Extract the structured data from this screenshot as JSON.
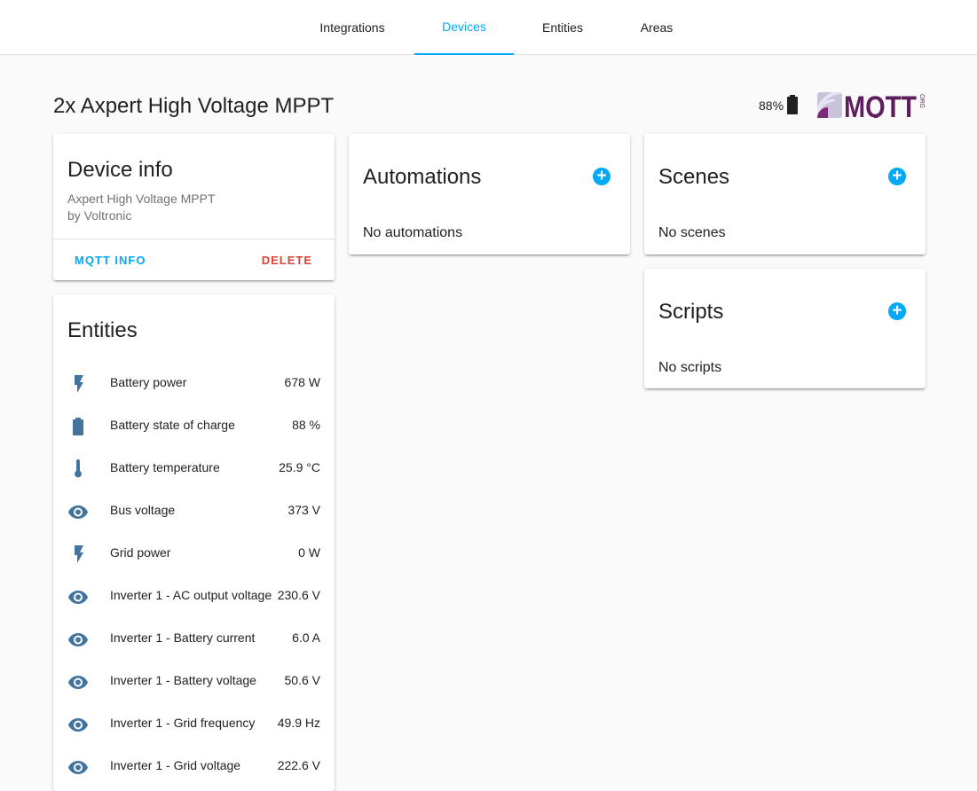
{
  "tabs": [
    {
      "label": "Integrations"
    },
    {
      "label": "Devices"
    },
    {
      "label": "Entities"
    },
    {
      "label": "Areas"
    }
  ],
  "active_tab": "Devices",
  "device_title": "2x Axpert High Voltage MPPT",
  "battery_level": "88%",
  "logo_text": "MQTT",
  "logo_sub": "ORG",
  "device_info": {
    "heading": "Device info",
    "model": "Axpert High Voltage MPPT",
    "manufacturer": "by Voltronic",
    "mqtt_info": "MQTT INFO",
    "delete": "DELETE"
  },
  "entities": {
    "heading": "Entities",
    "items": [
      {
        "icon": "flash-icon",
        "name": "Battery power",
        "value": "678 W"
      },
      {
        "icon": "battery-icon",
        "name": "Battery state of charge",
        "value": "88 %"
      },
      {
        "icon": "thermometer-icon",
        "name": "Battery temperature",
        "value": "25.9 °C"
      },
      {
        "icon": "eye-icon",
        "name": "Bus voltage",
        "value": "373 V"
      },
      {
        "icon": "flash-icon",
        "name": "Grid power",
        "value": "0 W"
      },
      {
        "icon": "eye-icon",
        "name": "Inverter 1 - AC output voltage",
        "value": "230.6 V"
      },
      {
        "icon": "eye-icon",
        "name": "Inverter 1 - Battery current",
        "value": "6.0 A"
      },
      {
        "icon": "eye-icon",
        "name": "Inverter 1 - Battery voltage",
        "value": "50.6 V"
      },
      {
        "icon": "eye-icon",
        "name": "Inverter 1 - Grid frequency",
        "value": "49.9 Hz"
      },
      {
        "icon": "eye-icon",
        "name": "Inverter 1 - Grid voltage",
        "value": "222.6 V"
      }
    ]
  },
  "automations": {
    "heading": "Automations",
    "empty": "No automations"
  },
  "scenes": {
    "heading": "Scenes",
    "empty": "No scenes"
  },
  "scripts": {
    "heading": "Scripts",
    "empty": "No scripts"
  },
  "colors": {
    "accent": "#03a9f4",
    "delete": "#db4437",
    "icon": "#44739e"
  }
}
